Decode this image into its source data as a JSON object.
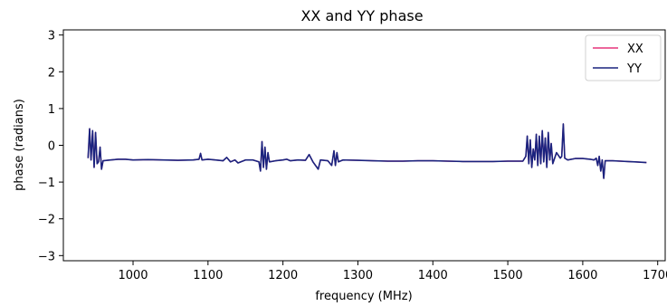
{
  "chart_data": {
    "type": "line",
    "title": "XX and YY phase",
    "xlabel": "frequency (MHz)",
    "ylabel": "phase (radians)",
    "xlim": [
      907,
      1710
    ],
    "ylim": [
      -3.14,
      3.14
    ],
    "xticks": [
      1000,
      1100,
      1200,
      1300,
      1400,
      1500,
      1600,
      1700
    ],
    "yticks": [
      -3,
      -2,
      -1,
      0,
      1,
      2,
      3
    ],
    "grid": false,
    "legend_position": "top-right",
    "series": [
      {
        "name": "XX",
        "color": "#e6357a",
        "x": [
          940,
          942,
          944,
          946,
          948,
          950,
          952,
          954,
          956,
          958,
          960,
          970,
          980,
          990,
          1000,
          1020,
          1040,
          1060,
          1080,
          1088,
          1090,
          1092,
          1100,
          1110,
          1120,
          1125,
          1130,
          1136,
          1140,
          1150,
          1160,
          1168,
          1170,
          1172,
          1174,
          1176,
          1178,
          1180,
          1182,
          1190,
          1200,
          1205,
          1210,
          1220,
          1230,
          1235,
          1240,
          1247,
          1250,
          1260,
          1265,
          1268,
          1270,
          1272,
          1274,
          1280,
          1300,
          1320,
          1340,
          1360,
          1380,
          1400,
          1420,
          1440,
          1460,
          1480,
          1500,
          1520,
          1524,
          1526,
          1528,
          1530,
          1532,
          1534,
          1536,
          1538,
          1540,
          1542,
          1544,
          1546,
          1548,
          1550,
          1552,
          1554,
          1556,
          1558,
          1560,
          1565,
          1570,
          1572,
          1574,
          1576,
          1580,
          1590,
          1600,
          1610,
          1615,
          1618,
          1620,
          1622,
          1624,
          1626,
          1628,
          1630,
          1640,
          1650,
          1660,
          1670,
          1685
        ],
        "y": [
          -0.35,
          0.45,
          -0.4,
          0.4,
          -0.6,
          0.35,
          -0.5,
          -0.45,
          -0.05,
          -0.65,
          -0.42,
          -0.4,
          -0.38,
          -0.38,
          -0.4,
          -0.39,
          -0.4,
          -0.41,
          -0.4,
          -0.38,
          -0.22,
          -0.4,
          -0.38,
          -0.4,
          -0.42,
          -0.33,
          -0.45,
          -0.4,
          -0.48,
          -0.4,
          -0.4,
          -0.45,
          -0.7,
          0.1,
          -0.6,
          -0.05,
          -0.65,
          -0.2,
          -0.45,
          -0.42,
          -0.4,
          -0.38,
          -0.42,
          -0.4,
          -0.41,
          -0.25,
          -0.45,
          -0.65,
          -0.4,
          -0.42,
          -0.55,
          -0.15,
          -0.55,
          -0.2,
          -0.45,
          -0.4,
          -0.41,
          -0.42,
          -0.43,
          -0.43,
          -0.42,
          -0.42,
          -0.43,
          -0.44,
          -0.44,
          -0.44,
          -0.43,
          -0.43,
          -0.3,
          0.25,
          -0.5,
          0.15,
          -0.6,
          -0.1,
          -0.4,
          0.3,
          -0.55,
          0.25,
          -0.5,
          0.4,
          -0.45,
          0.2,
          -0.6,
          0.35,
          -0.4,
          0.05,
          -0.5,
          -0.2,
          -0.35,
          -0.3,
          0.58,
          -0.35,
          -0.4,
          -0.36,
          -0.36,
          -0.38,
          -0.4,
          -0.35,
          -0.55,
          -0.3,
          -0.7,
          -0.4,
          -0.9,
          -0.42,
          -0.42,
          -0.43,
          -0.44,
          -0.45,
          -0.47
        ]
      },
      {
        "name": "YY",
        "color": "#1a237e",
        "x": [
          940,
          942,
          944,
          946,
          948,
          950,
          952,
          954,
          956,
          958,
          960,
          970,
          980,
          990,
          1000,
          1020,
          1040,
          1060,
          1080,
          1088,
          1090,
          1092,
          1100,
          1110,
          1120,
          1125,
          1130,
          1136,
          1140,
          1150,
          1160,
          1168,
          1170,
          1172,
          1174,
          1176,
          1178,
          1180,
          1182,
          1190,
          1200,
          1205,
          1210,
          1220,
          1230,
          1235,
          1240,
          1247,
          1250,
          1260,
          1265,
          1268,
          1270,
          1272,
          1274,
          1280,
          1300,
          1320,
          1340,
          1360,
          1380,
          1400,
          1420,
          1440,
          1460,
          1480,
          1500,
          1520,
          1524,
          1526,
          1528,
          1530,
          1532,
          1534,
          1536,
          1538,
          1540,
          1542,
          1544,
          1546,
          1548,
          1550,
          1552,
          1554,
          1556,
          1558,
          1560,
          1565,
          1570,
          1572,
          1574,
          1576,
          1580,
          1590,
          1600,
          1610,
          1615,
          1618,
          1620,
          1622,
          1624,
          1626,
          1628,
          1630,
          1640,
          1650,
          1660,
          1670,
          1685
        ],
        "y": [
          -0.35,
          0.45,
          -0.4,
          0.4,
          -0.6,
          0.35,
          -0.5,
          -0.45,
          -0.05,
          -0.65,
          -0.42,
          -0.4,
          -0.38,
          -0.38,
          -0.4,
          -0.39,
          -0.4,
          -0.41,
          -0.4,
          -0.38,
          -0.22,
          -0.4,
          -0.38,
          -0.4,
          -0.42,
          -0.33,
          -0.45,
          -0.4,
          -0.48,
          -0.4,
          -0.4,
          -0.45,
          -0.7,
          0.1,
          -0.6,
          -0.05,
          -0.65,
          -0.2,
          -0.45,
          -0.42,
          -0.4,
          -0.38,
          -0.42,
          -0.4,
          -0.41,
          -0.25,
          -0.45,
          -0.65,
          -0.4,
          -0.42,
          -0.55,
          -0.15,
          -0.55,
          -0.2,
          -0.45,
          -0.4,
          -0.41,
          -0.42,
          -0.43,
          -0.43,
          -0.42,
          -0.42,
          -0.43,
          -0.44,
          -0.44,
          -0.44,
          -0.43,
          -0.43,
          -0.3,
          0.25,
          -0.5,
          0.15,
          -0.6,
          -0.1,
          -0.4,
          0.3,
          -0.55,
          0.25,
          -0.5,
          0.4,
          -0.45,
          0.2,
          -0.6,
          0.35,
          -0.4,
          0.05,
          -0.5,
          -0.2,
          -0.35,
          -0.3,
          0.58,
          -0.35,
          -0.4,
          -0.36,
          -0.36,
          -0.38,
          -0.4,
          -0.35,
          -0.55,
          -0.3,
          -0.7,
          -0.4,
          -0.9,
          -0.42,
          -0.42,
          -0.43,
          -0.44,
          -0.45,
          -0.47
        ]
      }
    ]
  }
}
